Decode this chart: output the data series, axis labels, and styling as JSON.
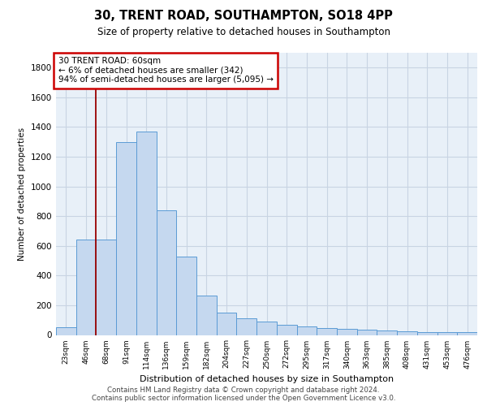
{
  "title_line1": "30, TRENT ROAD, SOUTHAMPTON, SO18 4PP",
  "title_line2": "Size of property relative to detached houses in Southampton",
  "xlabel": "Distribution of detached houses by size in Southampton",
  "ylabel": "Number of detached properties",
  "categories": [
    "23sqm",
    "46sqm",
    "68sqm",
    "91sqm",
    "114sqm",
    "136sqm",
    "159sqm",
    "182sqm",
    "204sqm",
    "227sqm",
    "250sqm",
    "272sqm",
    "295sqm",
    "317sqm",
    "340sqm",
    "363sqm",
    "385sqm",
    "408sqm",
    "431sqm",
    "453sqm",
    "476sqm"
  ],
  "values": [
    50,
    640,
    640,
    1300,
    1370,
    840,
    530,
    265,
    150,
    110,
    90,
    70,
    55,
    45,
    40,
    35,
    30,
    25,
    20,
    20,
    20
  ],
  "bar_color": "#c5d8ef",
  "bar_edge_color": "#5b9bd5",
  "grid_color": "#c8d4e3",
  "background_color": "#e8f0f8",
  "vline_color": "#990000",
  "annotation_text": "30 TRENT ROAD: 60sqm\n← 6% of detached houses are smaller (342)\n94% of semi-detached houses are larger (5,095) →",
  "annotation_box_color": "#ffffff",
  "annotation_box_edge": "#cc0000",
  "ylim": [
    0,
    1900
  ],
  "yticks": [
    0,
    200,
    400,
    600,
    800,
    1000,
    1200,
    1400,
    1600,
    1800
  ],
  "footer_line1": "Contains HM Land Registry data © Crown copyright and database right 2024.",
  "footer_line2": "Contains public sector information licensed under the Open Government Licence v3.0."
}
